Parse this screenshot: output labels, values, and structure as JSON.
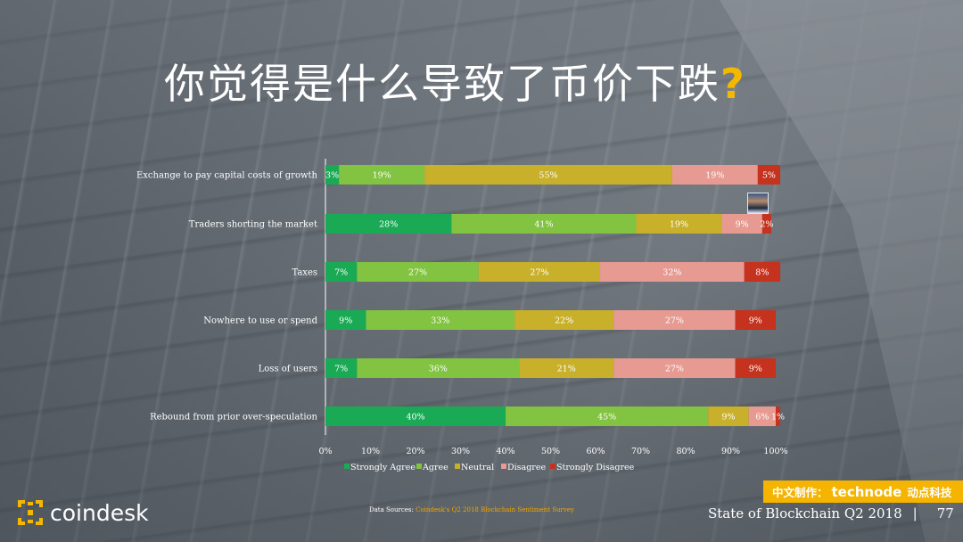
{
  "slide": {
    "title": "你觉得是什么导致了币价下跌",
    "title_mark": "?",
    "logo_text": "coindesk",
    "source_prefix": "Data Sources: ",
    "source_link": "Coindesk's Q2 2018 Blockchain Sentiment Survey",
    "footer_title": "State of Blockchain Q2 2018",
    "footer_sep": "|",
    "page_number": "77",
    "badge_prefix": "中文制作：",
    "badge_brand": "technode",
    "badge_suffix": "动点科技"
  },
  "colors": {
    "strongly_agree": "#1aaa55",
    "agree": "#82c341",
    "neutral": "#c9b02a",
    "disagree": "#e79a92",
    "strongly_disagree": "#c5321e",
    "accent": "#f5b800"
  },
  "chart_data": {
    "type": "bar",
    "orientation": "horizontal-stacked-100",
    "categories": [
      "Exchange to pay capital costs of growth",
      "Traders shorting the market",
      "Taxes",
      "Nowhere to use or spend",
      "Loss of users",
      "Rebound from prior over-speculation"
    ],
    "series": [
      {
        "name": "Strongly Agree",
        "values": [
          3,
          28,
          7,
          9,
          7,
          40
        ]
      },
      {
        "name": "Agree",
        "values": [
          19,
          41,
          27,
          33,
          36,
          45
        ]
      },
      {
        "name": "Neutral",
        "values": [
          55,
          19,
          27,
          22,
          21,
          9
        ]
      },
      {
        "name": "Disagree",
        "values": [
          19,
          9,
          32,
          27,
          27,
          6
        ]
      },
      {
        "name": "Strongly Disagree",
        "values": [
          5,
          2,
          8,
          9,
          9,
          1
        ]
      }
    ],
    "x_ticks": [
      "0%",
      "10%",
      "20%",
      "30%",
      "40%",
      "50%",
      "60%",
      "70%",
      "80%",
      "90%",
      "100%"
    ],
    "xlim": [
      0,
      100
    ],
    "legend_position": "bottom",
    "grid": false
  }
}
